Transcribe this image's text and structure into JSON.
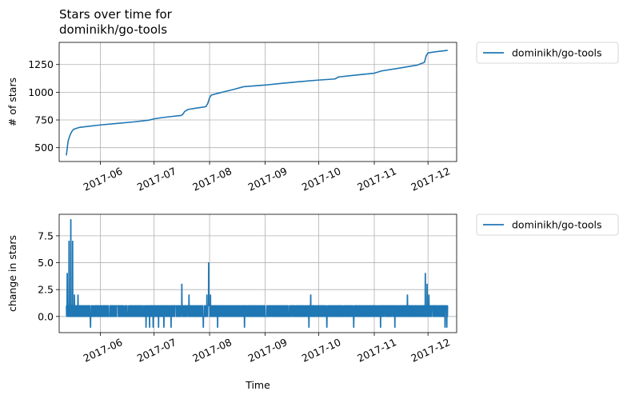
{
  "chart_data": [
    {
      "type": "line",
      "title": "Stars over time for\ndominikh/go-tools",
      "xlabel": "",
      "ylabel": "# of stars",
      "xlim": [
        "2017-05-09",
        "2017-12-17"
      ],
      "ylim": [
        375,
        1450
      ],
      "xticks": [
        "2017-06-01",
        "2017-07-01",
        "2017-08-01",
        "2017-09-01",
        "2017-10-01",
        "2017-11-01",
        "2017-12-01"
      ],
      "xtick_labels": [
        "2017-06",
        "2017-07",
        "2017-08",
        "2017-09",
        "2017-10",
        "2017-11",
        "2017-12"
      ],
      "yticks": [
        500,
        750,
        1000,
        1250
      ],
      "yticklabels": [
        "500",
        "750",
        "1000",
        "1250"
      ],
      "grid": true,
      "legend_position": "outside-upper-right",
      "series": [
        {
          "name": "dominikh/go-tools",
          "color": "#1f77b4",
          "x": [
            "2017-05-13",
            "2017-05-14",
            "2017-05-15",
            "2017-05-16",
            "2017-05-17",
            "2017-05-20",
            "2017-05-25",
            "2017-06-01",
            "2017-06-10",
            "2017-06-20",
            "2017-06-28",
            "2017-07-01",
            "2017-07-05",
            "2017-07-10",
            "2017-07-16",
            "2017-07-17",
            "2017-07-18",
            "2017-07-20",
            "2017-07-25",
            "2017-07-30",
            "2017-07-31",
            "2017-08-01",
            "2017-08-02",
            "2017-08-05",
            "2017-08-10",
            "2017-08-15",
            "2017-08-20",
            "2017-09-01",
            "2017-09-10",
            "2017-09-20",
            "2017-10-01",
            "2017-10-10",
            "2017-10-12",
            "2017-10-20",
            "2017-11-01",
            "2017-11-05",
            "2017-11-15",
            "2017-11-25",
            "2017-11-29",
            "2017-11-30",
            "2017-12-01",
            "2017-12-05",
            "2017-12-12"
          ],
          "y": [
            430,
            560,
            610,
            645,
            665,
            682,
            692,
            705,
            718,
            733,
            748,
            760,
            770,
            780,
            790,
            800,
            825,
            845,
            858,
            870,
            900,
            950,
            975,
            988,
            1008,
            1028,
            1050,
            1065,
            1080,
            1095,
            1110,
            1120,
            1138,
            1152,
            1172,
            1192,
            1218,
            1245,
            1270,
            1330,
            1355,
            1365,
            1378
          ]
        }
      ]
    },
    {
      "type": "line",
      "title": "",
      "xlabel": "Time",
      "ylabel": "change in stars",
      "xlim": [
        "2017-05-09",
        "2017-12-17"
      ],
      "ylim": [
        -1.5,
        9.5
      ],
      "xticks": [
        "2017-06-01",
        "2017-07-01",
        "2017-08-01",
        "2017-09-01",
        "2017-10-01",
        "2017-11-01",
        "2017-12-01"
      ],
      "xtick_labels": [
        "2017-06",
        "2017-07",
        "2017-08",
        "2017-09",
        "2017-10",
        "2017-11",
        "2017-12"
      ],
      "yticks": [
        0.0,
        2.5,
        5.0,
        7.5
      ],
      "yticklabels": [
        "0.0",
        "2.5",
        "5.0",
        "7.5"
      ],
      "grid": true,
      "legend_position": "outside-upper-right",
      "series": [
        {
          "name": "dominikh/go-tools",
          "color": "#1f77b4",
          "start": "2017-05-13",
          "end": "2017-12-12",
          "baseline_max": 1,
          "spikes": [
            {
              "x": "2017-05-13",
              "y": 4
            },
            {
              "x": "2017-05-14",
              "y": 7
            },
            {
              "x": "2017-05-15",
              "y": 9
            },
            {
              "x": "2017-05-16",
              "y": 7
            },
            {
              "x": "2017-05-17",
              "y": 2
            },
            {
              "x": "2017-05-19",
              "y": 2
            },
            {
              "x": "2017-07-16",
              "y": 3
            },
            {
              "x": "2017-07-20",
              "y": 2
            },
            {
              "x": "2017-07-30",
              "y": 2
            },
            {
              "x": "2017-07-31",
              "y": 5
            },
            {
              "x": "2017-08-01",
              "y": 2
            },
            {
              "x": "2017-09-26",
              "y": 2
            },
            {
              "x": "2017-11-19",
              "y": 2
            },
            {
              "x": "2017-11-29",
              "y": 4
            },
            {
              "x": "2017-11-30",
              "y": 3
            },
            {
              "x": "2017-12-01",
              "y": 2
            },
            {
              "x": "2017-12-03",
              "y": 1
            }
          ],
          "dips": [
            "2017-05-26",
            "2017-06-26",
            "2017-06-28",
            "2017-06-30",
            "2017-07-03",
            "2017-07-06",
            "2017-07-10",
            "2017-07-28",
            "2017-08-05",
            "2017-08-20",
            "2017-09-25",
            "2017-10-05",
            "2017-10-20",
            "2017-11-04",
            "2017-11-12",
            "2017-12-10",
            "2017-12-11"
          ]
        }
      ]
    }
  ]
}
